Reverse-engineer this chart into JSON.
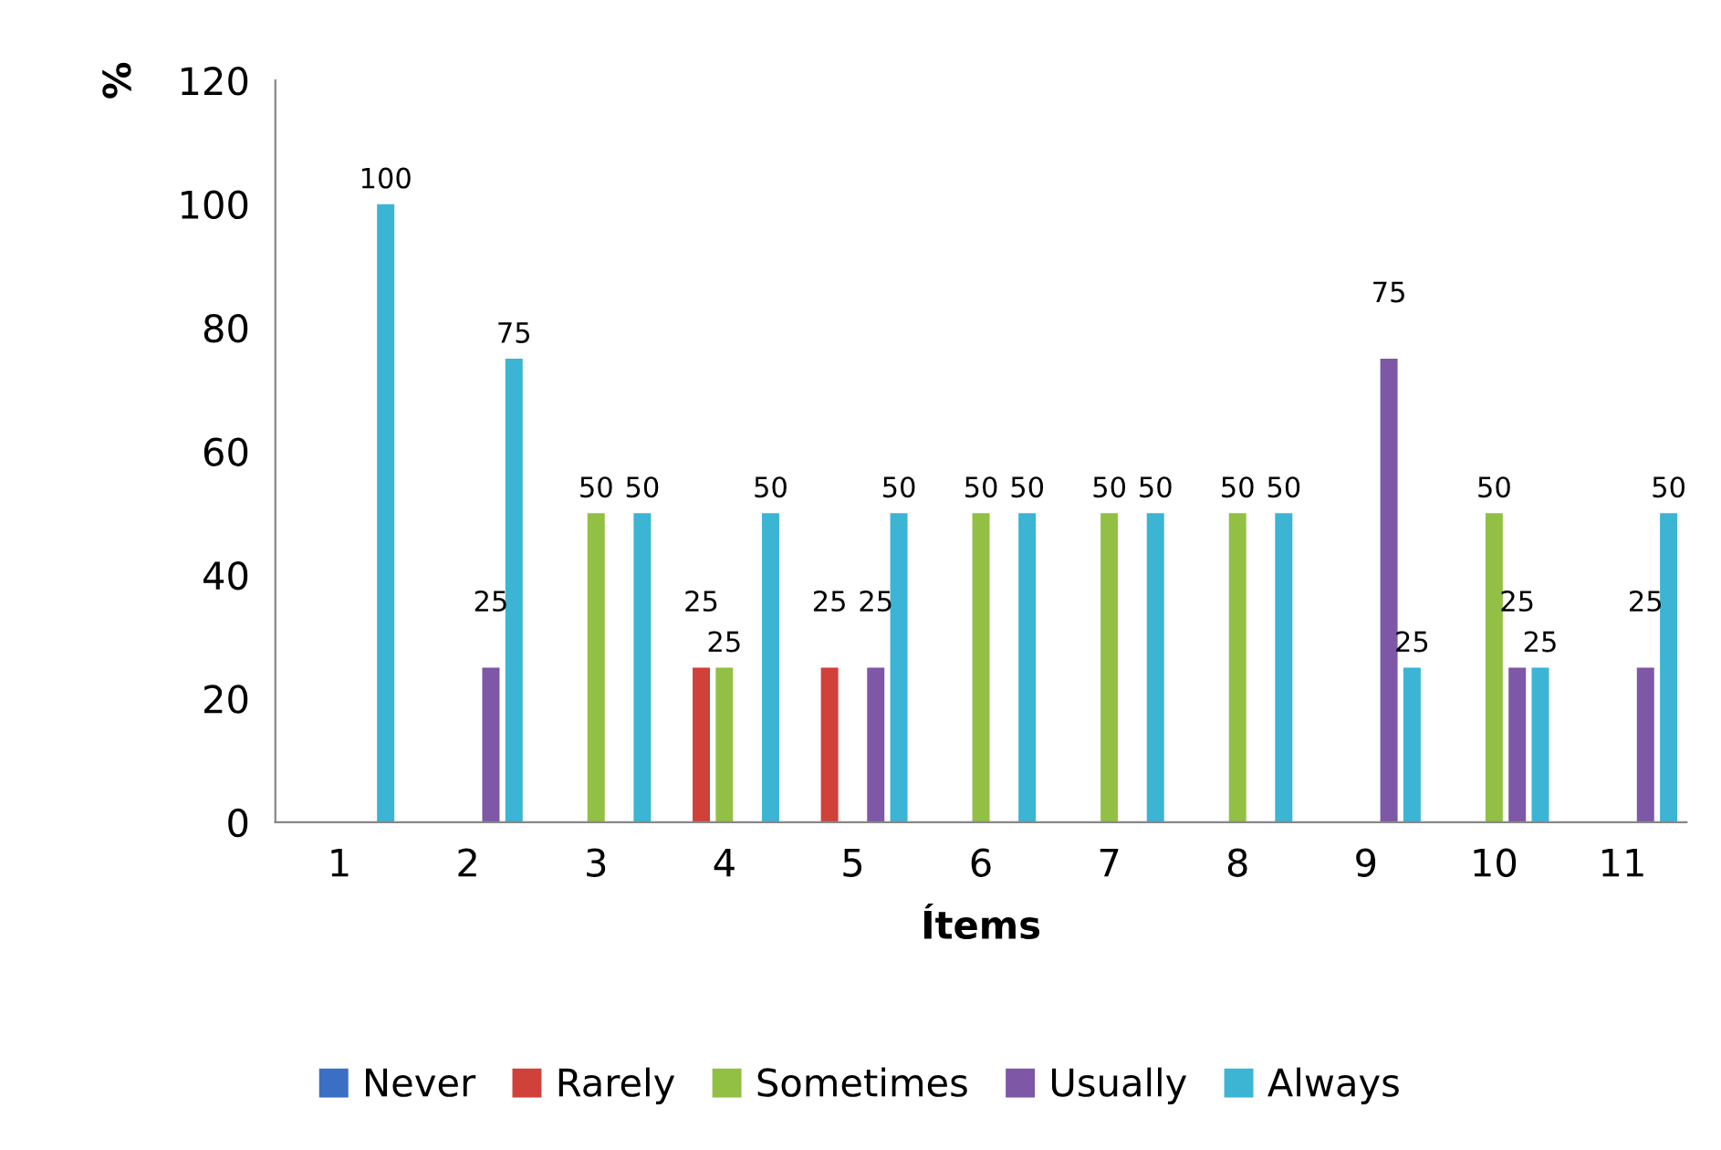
{
  "chart_data": {
    "type": "bar",
    "xlabel": "Ítems",
    "ylabel": "%",
    "categories": [
      "1",
      "2",
      "3",
      "4",
      "5",
      "6",
      "7",
      "8",
      "9",
      "10",
      "11"
    ],
    "series": [
      {
        "name": "Never",
        "color": "#3a6fc4",
        "values": [
          null,
          null,
          null,
          null,
          null,
          null,
          null,
          null,
          null,
          null,
          null
        ]
      },
      {
        "name": "Rarely",
        "color": "#d0413a",
        "values": [
          null,
          null,
          null,
          25,
          25,
          null,
          null,
          null,
          null,
          null,
          null
        ]
      },
      {
        "name": "Sometimes",
        "color": "#92c045",
        "values": [
          null,
          null,
          50,
          25,
          null,
          50,
          50,
          50,
          null,
          50,
          null
        ]
      },
      {
        "name": "Usually",
        "color": "#7e57a7",
        "values": [
          null,
          25,
          null,
          null,
          25,
          null,
          null,
          null,
          75,
          25,
          25
        ]
      },
      {
        "name": "Always",
        "color": "#3cb4d4",
        "values": [
          100,
          75,
          50,
          50,
          50,
          50,
          50,
          50,
          25,
          25,
          50
        ]
      }
    ],
    "ylim": [
      0,
      120
    ],
    "yticks": [
      0,
      20,
      40,
      60,
      80,
      100,
      120
    ],
    "data_labels": true,
    "grid": false,
    "legend": "bottom"
  }
}
